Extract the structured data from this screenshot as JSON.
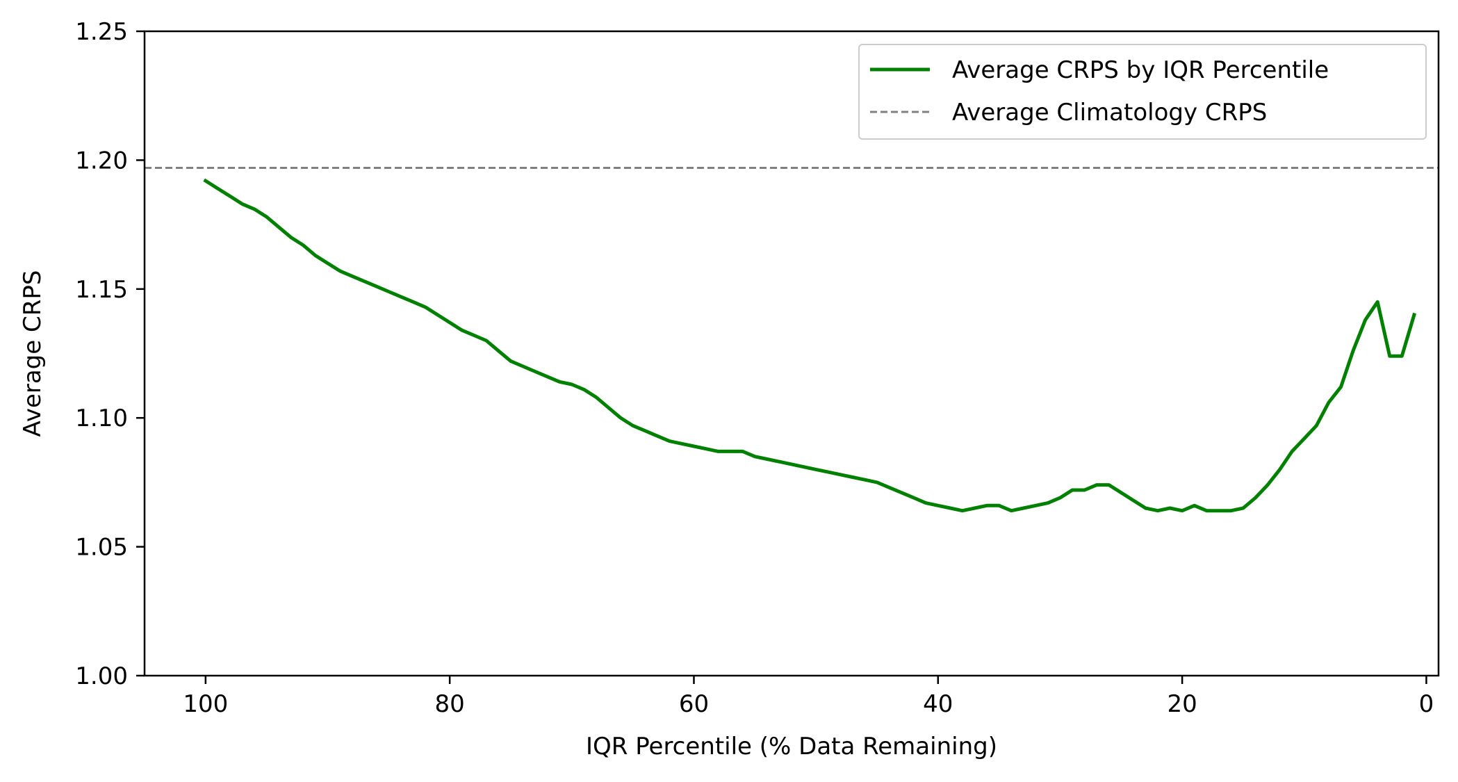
{
  "chart_data": {
    "type": "line",
    "title": "",
    "xlabel": "IQR Percentile (% Data Remaining)",
    "ylabel": "Average CRPS",
    "xlim": [
      105,
      -1
    ],
    "ylim": [
      1.0,
      1.25
    ],
    "x_inverted": true,
    "xticks": [
      100,
      80,
      60,
      40,
      20,
      0
    ],
    "yticks": [
      1.0,
      1.05,
      1.1,
      1.15,
      1.2,
      1.25
    ],
    "xtick_labels": [
      "100",
      "80",
      "60",
      "40",
      "20",
      "0"
    ],
    "ytick_labels": [
      "1.00",
      "1.05",
      "1.10",
      "1.15",
      "1.20",
      "1.25"
    ],
    "grid": false,
    "legend_position": "top-right",
    "series": [
      {
        "name": "Average CRPS by IQR Percentile",
        "color": "#008000",
        "style": "solid",
        "x": [
          100,
          99,
          98,
          97,
          96,
          95,
          94,
          93,
          92,
          91,
          90,
          89,
          88,
          87,
          86,
          85,
          84,
          83,
          82,
          81,
          80,
          79,
          78,
          77,
          76,
          75,
          74,
          73,
          72,
          71,
          70,
          69,
          68,
          67,
          66,
          65,
          64,
          63,
          62,
          61,
          60,
          59,
          58,
          57,
          56,
          55,
          54,
          53,
          52,
          51,
          50,
          49,
          48,
          47,
          46,
          45,
          44,
          43,
          42,
          41,
          40,
          39,
          38,
          37,
          36,
          35,
          34,
          33,
          32,
          31,
          30,
          29,
          28,
          27,
          26,
          25,
          24,
          23,
          22,
          21,
          20,
          19,
          18,
          17,
          16,
          15,
          14,
          13,
          12,
          11,
          10,
          9,
          8,
          7,
          6,
          5,
          4,
          3,
          2,
          1
        ],
        "y": [
          1.192,
          1.189,
          1.186,
          1.183,
          1.181,
          1.178,
          1.174,
          1.17,
          1.167,
          1.163,
          1.16,
          1.157,
          1.155,
          1.153,
          1.151,
          1.149,
          1.147,
          1.145,
          1.143,
          1.14,
          1.137,
          1.134,
          1.132,
          1.13,
          1.126,
          1.122,
          1.12,
          1.118,
          1.116,
          1.114,
          1.113,
          1.111,
          1.108,
          1.104,
          1.1,
          1.097,
          1.095,
          1.093,
          1.091,
          1.09,
          1.089,
          1.088,
          1.087,
          1.087,
          1.087,
          1.085,
          1.084,
          1.083,
          1.082,
          1.081,
          1.08,
          1.079,
          1.078,
          1.077,
          1.076,
          1.075,
          1.073,
          1.071,
          1.069,
          1.067,
          1.066,
          1.065,
          1.064,
          1.065,
          1.066,
          1.066,
          1.064,
          1.065,
          1.066,
          1.067,
          1.069,
          1.072,
          1.072,
          1.074,
          1.074,
          1.071,
          1.068,
          1.065,
          1.064,
          1.065,
          1.064,
          1.066,
          1.064,
          1.064,
          1.064,
          1.065,
          1.069,
          1.074,
          1.08,
          1.087,
          1.092,
          1.097,
          1.106,
          1.112,
          1.126,
          1.138,
          1.145,
          1.124,
          1.124,
          1.14
        ]
      },
      {
        "name": "Average Climatology CRPS",
        "color": "#808080",
        "style": "dashed",
        "y_constant": 1.197
      }
    ]
  }
}
